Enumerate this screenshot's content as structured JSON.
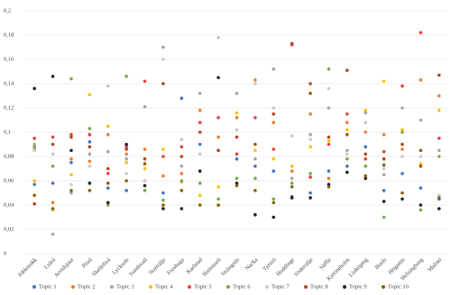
{
  "chart_data": {
    "type": "scatter",
    "categories": [
      "Jokkmokk",
      "Luleå",
      "Arvidsjaur",
      "Piteå",
      "Skellefteå",
      "Lycksele",
      "Sundsvall",
      "Norrtälje",
      "Forshaga",
      "Karlstad",
      "Hammarö",
      "Strängnäs",
      "Nacka",
      "Tyresö",
      "Huddinge",
      "Södertälje",
      "Säffle",
      "Katrineholm",
      "Linköping",
      "Borås",
      "Höganäs",
      "Helsingborg",
      "Malmö"
    ],
    "ylim": [
      0,
      0.2
    ],
    "yticks": [
      0,
      {
        "value": 0.02,
        "label": "0,02"
      },
      {
        "value": 0.04,
        "label": "0,04"
      },
      {
        "value": 0.06,
        "label": "0,06"
      },
      {
        "value": 0.08,
        "label": "0,08"
      },
      {
        "value": 0.1,
        "label": "0,1"
      },
      {
        "value": 0.12,
        "label": "0,12"
      },
      {
        "value": 0.14,
        "label": "0,14"
      },
      {
        "value": 0.16,
        "label": "0,16"
      },
      {
        "value": 0.18,
        "label": "0,18"
      },
      {
        "value": 0.2,
        "label": "0,2"
      }
    ],
    "grid": true,
    "legend": "bottom",
    "series": [
      {
        "name": "Topic 1",
        "color": "#4472c4",
        "values": [
          0.057,
          0.058,
          0.075,
          0.092,
          0.054,
          0.052,
          0.06,
          0.05,
          0.128,
          0.09,
          0.04,
          0.078,
          0.072,
          0.068,
          0.047,
          0.05,
          0.068,
          0.072,
          0.088,
          0.052,
          0.066,
          0.054,
          0.045
        ]
      },
      {
        "name": "Topic 2",
        "color": "#ed7d31",
        "values": [
          0.086,
          0.042,
          0.078,
          0.076,
          0.098,
          0.082,
          0.086,
          0.064,
          0.066,
          0.118,
          0.096,
          0.112,
          0.143,
          0.108,
          0.068,
          0.115,
          0.062,
          0.108,
          0.1,
          0.098,
          0.086,
          0.143,
          0.13
        ]
      },
      {
        "name": "Topic 3",
        "color": "#a5a5a5",
        "values": [
          0.09,
          0.016,
          0.05,
          0.082,
          0.084,
          0.078,
          0.121,
          0.17,
          0.072,
          0.132,
          0.085,
          0.132,
          0.078,
          0.152,
          0.062,
          0.098,
          0.12,
          0.085,
          0.116,
          0.065,
          0.12,
          0.11,
          0.085
        ]
      },
      {
        "name": "Topic 4",
        "color": "#ffc000",
        "values": [
          0.06,
          0.036,
          0.065,
          0.131,
          0.105,
          0.075,
          0.07,
          0.086,
          0.059,
          0.048,
          0.055,
          0.116,
          0.085,
          0.078,
          0.072,
          0.088,
          0.093,
          0.102,
          0.118,
          0.142,
          0.102,
          0.074,
          0.118
        ]
      },
      {
        "name": "Topic 5",
        "color": "#e8413c",
        "values": [
          0.095,
          0.096,
          0.098,
          0.098,
          0.066,
          0.088,
          0.142,
          0.08,
          0.088,
          0.108,
          0.112,
          0.082,
          0.112,
          0.086,
          0.172,
          0.063,
          0.09,
          0.115,
          0.078,
          0.084,
          0.138,
          0.182,
          0.095
        ]
      },
      {
        "name": "Topic 6",
        "color": "#70ad47",
        "values": [
          0.088,
          0.072,
          0.144,
          0.103,
          0.04,
          0.146,
          0.052,
          0.044,
          0.06,
          0.058,
          0.045,
          0.062,
          0.062,
          0.045,
          0.058,
          0.066,
          0.152,
          0.078,
          0.072,
          0.03,
          0.1,
          0.036,
          0.08
        ]
      },
      {
        "name": "Topic 7",
        "color": "#c9c9c9",
        "values": [
          0.085,
          0.082,
          0.057,
          0.072,
          0.138,
          0.066,
          0.06,
          0.16,
          0.094,
          0.082,
          0.178,
          0.102,
          0.14,
          0.12,
          0.097,
          0.094,
          0.136,
          0.082,
          0.108,
          0.07,
          0.08,
          0.08,
          0.048
        ]
      },
      {
        "name": "Topic 8",
        "color": "#b5451b",
        "values": [
          0.041,
          0.09,
          0.096,
          0.088,
          0.07,
          0.086,
          0.078,
          0.14,
          0.08,
          0.1,
          0.085,
          0.096,
          0.09,
          0.115,
          0.173,
          0.14,
          0.096,
          0.151,
          0.082,
          0.078,
          0.09,
          0.072,
          0.147
        ]
      },
      {
        "name": "Topic 9",
        "color": "#222222",
        "values": [
          0.136,
          0.146,
          0.085,
          0.058,
          0.042,
          0.09,
          0.056,
          0.037,
          0.037,
          0.068,
          0.145,
          0.058,
          0.032,
          0.03,
          0.046,
          0.046,
          0.057,
          0.067,
          0.062,
          0.043,
          0.045,
          0.04,
          0.037
        ]
      },
      {
        "name": "Topic 10",
        "color": "#8a6000",
        "values": [
          0.048,
          0.037,
          0.052,
          0.052,
          0.058,
          0.06,
          0.074,
          0.04,
          0.052,
          0.04,
          0.04,
          0.056,
          0.052,
          0.042,
          0.055,
          0.132,
          0.055,
          0.098,
          0.064,
          0.073,
          0.05,
          0.085,
          0.046
        ]
      }
    ]
  }
}
